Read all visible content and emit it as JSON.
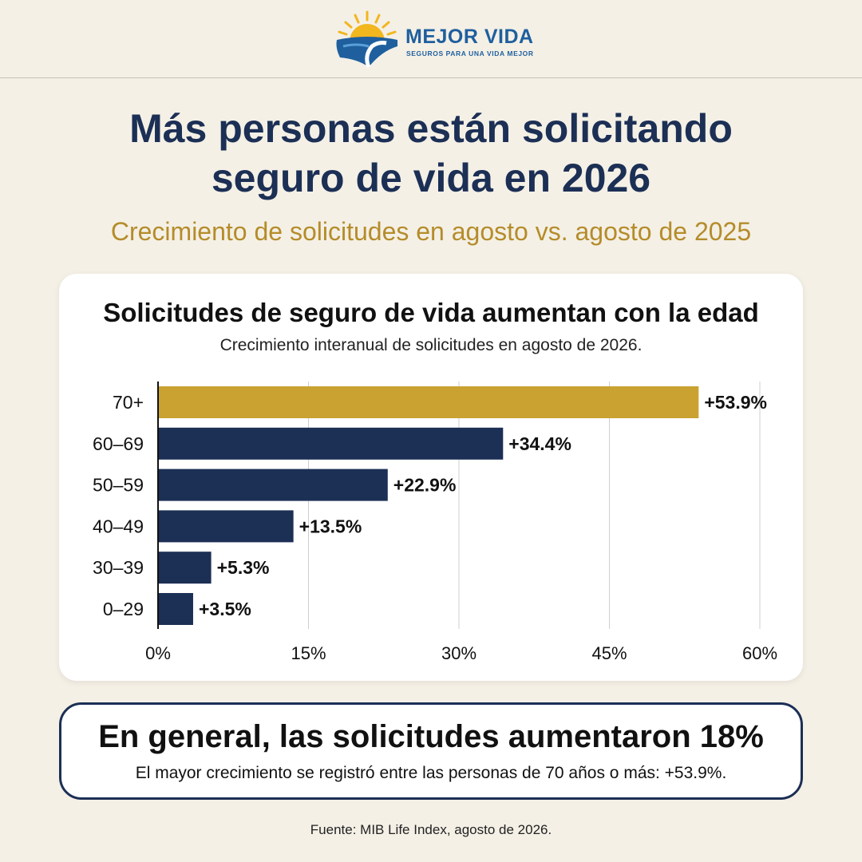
{
  "brand": {
    "name": "MEJOR VIDA",
    "tagline": "SEGUROS PARA UNA VIDA MEJOR"
  },
  "page": {
    "title_line1": "Más personas están solicitando",
    "title_line2": "seguro de vida en 2026",
    "subtitle": "Crecimiento de solicitudes en agosto vs. agosto de 2025"
  },
  "colors": {
    "highlight_bar": "#c9a232",
    "bar": "#1c2f55",
    "background": "#f4f0e6",
    "subtitle": "#b58c2a"
  },
  "chart_data": {
    "type": "bar",
    "orientation": "horizontal",
    "title": "Solicitudes de seguro de vida aumentan con la edad",
    "subtitle": "Crecimiento interanual de solicitudes en agosto de 2026.",
    "categories": [
      "70+",
      "60–69",
      "50–59",
      "40–49",
      "30–39",
      "0–29"
    ],
    "values": [
      53.9,
      34.4,
      22.9,
      13.5,
      5.3,
      3.5
    ],
    "value_labels": [
      "+53.9%",
      "+34.4%",
      "+22.9%",
      "+13.5%",
      "+5.3%",
      "+3.5%"
    ],
    "highlighted_category": "70+",
    "xlim": [
      0,
      60
    ],
    "x_ticks": [
      0,
      15,
      30,
      45,
      60
    ],
    "x_tick_labels": [
      "0%",
      "15%",
      "30%",
      "45%",
      "60%"
    ],
    "grid": "vertical"
  },
  "summary": {
    "headline": "En general, las solicitudes aumentaron 18%",
    "text": "El mayor crecimiento se registró entre las personas de 70 años o más: +53.9%."
  },
  "source": "Fuente: MIB Life Index, agosto de 2026."
}
